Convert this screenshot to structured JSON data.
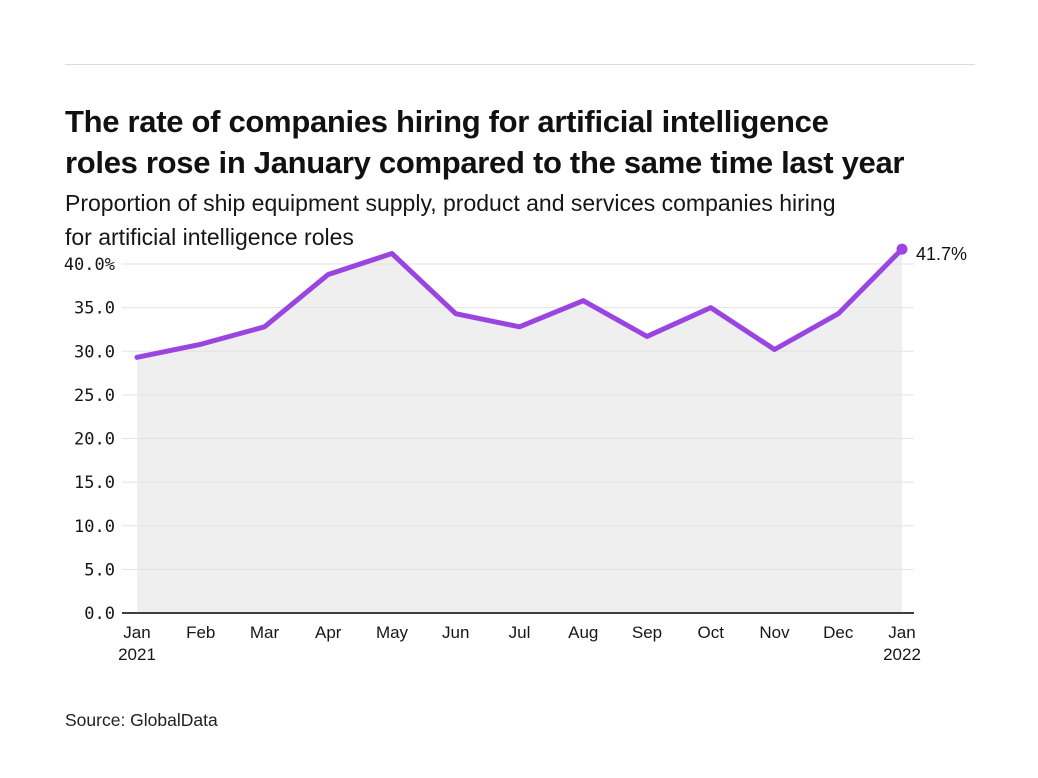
{
  "header": {
    "title_lines": [
      "The rate of companies hiring for artificial intelligence",
      "roles rose in January compared to the same time last year"
    ],
    "subtitle_lines": [
      "Proportion of ship equipment supply, product and services companies hiring",
      "for artificial intelligence roles"
    ]
  },
  "chart_data": {
    "type": "area",
    "title": "The rate of companies hiring for artificial intelligence roles rose in January compared to the same time last year",
    "subtitle": "Proportion of ship equipment supply, product and services companies hiring for artificial intelligence roles",
    "categories": [
      {
        "label": "Jan",
        "sublabel": "2021"
      },
      {
        "label": "Feb"
      },
      {
        "label": "Mar"
      },
      {
        "label": "Apr"
      },
      {
        "label": "May"
      },
      {
        "label": "Jun"
      },
      {
        "label": "Jul"
      },
      {
        "label": "Aug"
      },
      {
        "label": "Sep"
      },
      {
        "label": "Oct"
      },
      {
        "label": "Nov"
      },
      {
        "label": "Dec"
      },
      {
        "label": "Jan",
        "sublabel": "2022"
      }
    ],
    "values": [
      29.3,
      30.8,
      32.8,
      38.8,
      41.2,
      34.3,
      32.8,
      35.8,
      31.7,
      35.0,
      30.2,
      34.3,
      41.7
    ],
    "unit": "%",
    "ylim": [
      0,
      43.5
    ],
    "yticks": [
      0,
      5,
      10,
      15,
      20,
      25,
      30,
      35,
      40
    ],
    "ytick_labels": [
      "0.0",
      "5.0",
      "10.0",
      "15.0",
      "20.0",
      "25.0",
      "30.0",
      "35.0",
      "40.0%"
    ],
    "grid": "horizontal",
    "legend": "none",
    "line_color": "#9b45e0",
    "fill_color": "#efefef",
    "gridline_color": "#e3e3e3",
    "axis_color": "#3f3f3f",
    "endpoint_annotation": "41.7%"
  },
  "footer": {
    "source": "Source: GlobalData"
  }
}
